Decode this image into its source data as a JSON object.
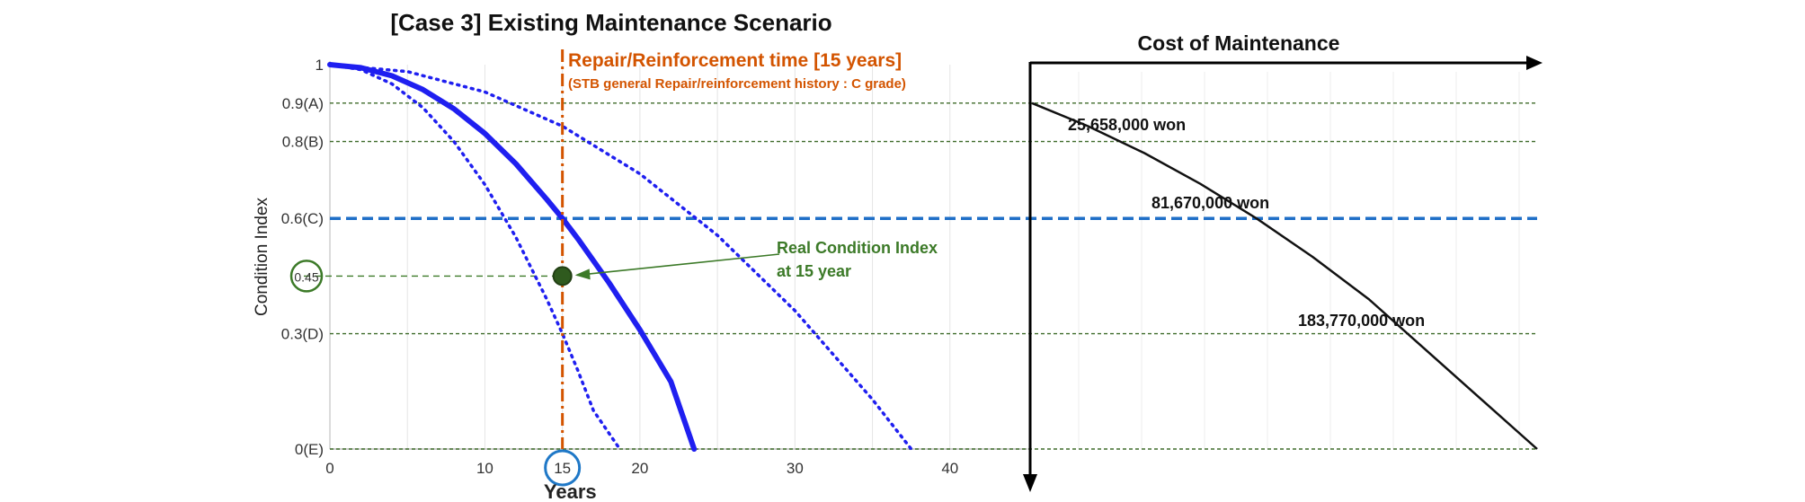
{
  "chart_data": {
    "type": "line",
    "title": "[Case 3] Existing Maintenance Scenario",
    "xlabel": "Years",
    "ylabel": "Condition Index",
    "xlim": [
      0,
      45
    ],
    "ylim": [
      0,
      1
    ],
    "x_ticks": [
      {
        "value": 0,
        "label": "0"
      },
      {
        "value": 10,
        "label": "10"
      },
      {
        "value": 15,
        "label": "15"
      },
      {
        "value": 20,
        "label": "20"
      },
      {
        "value": 30,
        "label": "30"
      },
      {
        "value": 40,
        "label": "40"
      }
    ],
    "y_ticks": [
      {
        "value": 1,
        "label": "1"
      },
      {
        "value": 0.9,
        "label": "0.9(A)"
      },
      {
        "value": 0.8,
        "label": "0.8(B)"
      },
      {
        "value": 0.6,
        "label": "0.6(C)"
      },
      {
        "value": 0.45,
        "label": "0.45"
      },
      {
        "value": 0.3,
        "label": "0.3(D)"
      },
      {
        "value": 0,
        "label": "0(E)"
      }
    ],
    "grade_lines": [
      0.9,
      0.8,
      0.3,
      0
    ],
    "grade_c_line": 0.6,
    "series": [
      {
        "style": "solid",
        "x": [
          0,
          2,
          4,
          6,
          8,
          10,
          12,
          14,
          15,
          16,
          18,
          20,
          22,
          23.5
        ],
        "y": [
          1,
          0.992,
          0.971,
          0.935,
          0.885,
          0.821,
          0.742,
          0.649,
          0.6,
          0.547,
          0.433,
          0.31,
          0.175,
          0
        ]
      },
      {
        "style": "dotted",
        "x": [
          0,
          2,
          4,
          6,
          8,
          10,
          12,
          14,
          15,
          16,
          17,
          18.7
        ],
        "y": [
          1,
          0.987,
          0.95,
          0.888,
          0.8,
          0.688,
          0.551,
          0.389,
          0.3,
          0.204,
          0.1,
          0
        ]
      },
      {
        "style": "dotted",
        "x": [
          0,
          5,
          10,
          15,
          20,
          25,
          30,
          35,
          37.5
        ],
        "y": [
          1,
          0.982,
          0.929,
          0.84,
          0.716,
          0.556,
          0.36,
          0.129,
          0
        ]
      }
    ],
    "repair_time": {
      "x": 15,
      "label": "Repair/Reinforcement time [15 years]",
      "sublabel": "(STB general Repair/reinforcement history : C grade)",
      "color": "#d35400"
    },
    "real_point": {
      "x": 15,
      "y": 0.45,
      "label_line1": "Real Condition Index",
      "label_line2": "at 15 year",
      "color": "#3c7a28"
    },
    "cost_panel": {
      "label": "Cost of Maintenance",
      "curve_y": [
        0.9,
        0.84,
        0.77,
        0.69,
        0.6,
        0.5,
        0.39,
        0.26,
        0.13,
        0
      ],
      "annotations": [
        {
          "text": "25,658,000 won",
          "y": 0.8
        },
        {
          "text": "81,670,000 won",
          "y": 0.6
        },
        {
          "text": "183,770,000 won",
          "y": 0.3
        }
      ]
    },
    "colors": {
      "main_curve": "#1f1ff0",
      "grade_c": "#1f6fc7",
      "grade_lines": "#3f6b2a",
      "repair": "#d35400",
      "real": "#3c7a28",
      "tick15_circle": "#1f78c7"
    },
    "grid": true
  }
}
